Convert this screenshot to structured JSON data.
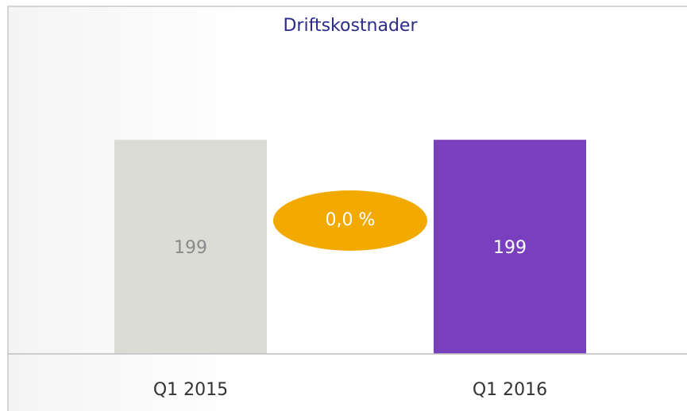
{
  "chart_data": {
    "type": "bar",
    "title": "Driftskostnader",
    "categories": [
      "Q1 2015",
      "Q1 2016"
    ],
    "values": [
      199,
      199
    ],
    "colors": [
      "#dcdcd6",
      "#7a3fbf"
    ],
    "value_label_colors": [
      "#8a8a8a",
      "#ffffff"
    ],
    "annotation": "0,0 %",
    "annotation_color": "#f2a900",
    "ylim": [
      0,
      250
    ],
    "grid": false
  }
}
